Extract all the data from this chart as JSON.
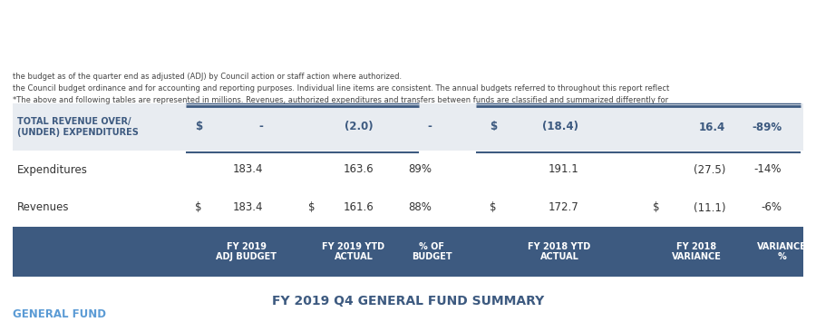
{
  "page_title": "GENERAL FUND",
  "chart_title": "FY 2019 Q4 GENERAL FUND SUMMARY",
  "header_bg": "#3d5a80",
  "header_text_color": "#ffffff",
  "total_row_bg": "#e8ecf1",
  "total_row_text_color": "#3d5a80",
  "body_bg": "#ffffff",
  "page_title_color": "#5b9bd5",
  "chart_title_color": "#3d5a80",
  "col_headers": [
    [
      "FY 2019",
      "ADJ BUDGET"
    ],
    [
      "FY 2019 YTD",
      "ACTUAL"
    ],
    [
      "% OF",
      "BUDGET"
    ],
    [
      "FY 2018 YTD",
      "ACTUAL"
    ],
    [
      "FY 2018",
      "VARIANCE"
    ],
    [
      "VARIANCE",
      "%"
    ]
  ],
  "footnote_line1": "*The above and following tables are represented in millions. Revenues, authorized expenditures and transfers between funds are classified and summarized differently for",
  "footnote_line2": "the Council budget ordinance and for accounting and reporting purposes. Individual line items are consistent. The annual budgets referred to throughout this report reflect",
  "footnote_line3": "the budget as of the quarter end as adjusted (ADJ) by Council action or staff action where authorized.",
  "line_color": "#3d5a80",
  "separator_color": "#8eaabf"
}
